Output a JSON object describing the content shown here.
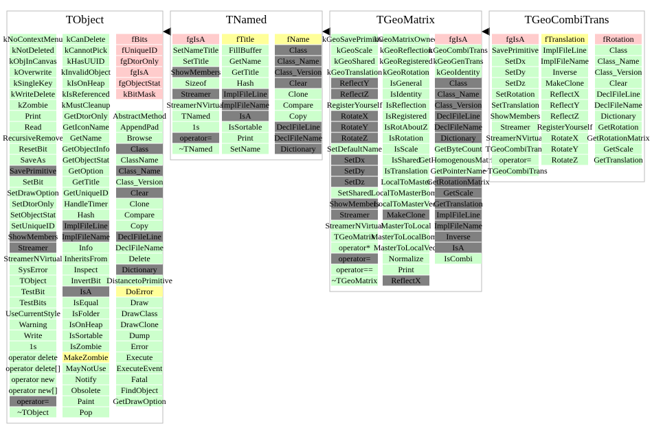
{
  "classes": [
    {
      "name": "TObject",
      "columns": [
        [
          {
            "color": "#ccffcc",
            "items": [
              "kNoContextMenu",
              "kNotDeleted",
              "kObjInCanvas",
              "kOverwrite",
              "kSingleKey",
              "kWriteDelete",
              "kZombie",
              "Print",
              "Read",
              "RecursiveRemove",
              "ResetBit",
              "SaveAs"
            ]
          },
          {
            "color": "#808080",
            "items": [
              "SavePrimitive"
            ]
          },
          {
            "color": "#ccffcc",
            "items": [
              "SetBit",
              "SetDrawOption",
              "SetDtorOnly",
              "SetObjectStat",
              "SetUniqueID"
            ]
          },
          {
            "color": "#808080",
            "items": [
              "ShowMembers",
              "Streamer"
            ]
          },
          {
            "color": "#ccffcc",
            "items": [
              "StreamerNVirtual",
              "SysError",
              "TObject",
              "TestBit",
              "TestBits",
              "UseCurrentStyle",
              "Warning",
              "Write",
              "1s",
              "operator delete",
              "operator delete[]",
              "operator new",
              "operator new[]"
            ]
          },
          {
            "color": "#808080",
            "items": [
              "operator="
            ]
          },
          {
            "color": "#ccffcc",
            "items": [
              "~TObject"
            ]
          }
        ],
        [
          {
            "color": "#ccffcc",
            "items": [
              "kCanDelete",
              "kCannotPick",
              "kHasUUID",
              "kInvalidObject",
              "kIsOnHeap",
              "kIsReferenced",
              "kMustCleanup",
              "GetDtorOnly",
              "GetIconName",
              "GetName",
              "GetObjectInfo",
              "GetObjectStat",
              "GetOption",
              "GetTitle",
              "GetUniqueID",
              "HandleTimer",
              "Hash"
            ]
          },
          {
            "color": "#808080",
            "items": [
              "ImplFileLine",
              "ImplFileName"
            ]
          },
          {
            "color": "#ccffcc",
            "items": [
              "Info",
              "InheritsFrom",
              "Inspect",
              "InvertBit"
            ]
          },
          {
            "color": "#808080",
            "items": [
              "IsA"
            ]
          },
          {
            "color": "#ccffcc",
            "items": [
              "IsEqual",
              "IsFolder",
              "IsOnHeap",
              "IsSortable",
              "IsZombie"
            ]
          },
          {
            "color": "#ffff99",
            "items": [
              "MakeZombie"
            ]
          },
          {
            "color": "#ccffcc",
            "items": [
              "MayNotUse",
              "Notify",
              "Obsolete",
              "Paint",
              "Pop"
            ]
          }
        ],
        [
          {
            "color": "#ffcccc",
            "items": [
              "fBits",
              "fUniqueID",
              "fgDtorOnly",
              "fgIsA",
              "fgObjectStat",
              "kBitMask",
              null
            ]
          },
          {
            "color": "#ccffcc",
            "items": [
              "AbstractMethod",
              "AppendPad",
              "Browse"
            ]
          },
          {
            "color": "#808080",
            "items": [
              "Class"
            ]
          },
          {
            "color": "#ccffcc",
            "items": [
              "ClassName"
            ]
          },
          {
            "color": "#808080",
            "items": [
              "Class_Name"
            ]
          },
          {
            "color": "#ccffcc",
            "items": [
              "Class_Version"
            ]
          },
          {
            "color": "#808080",
            "items": [
              "Clear"
            ]
          },
          {
            "color": "#ccffcc",
            "items": [
              "Clone",
              "Compare",
              "Copy"
            ]
          },
          {
            "color": "#808080",
            "items": [
              "DeclFileLine"
            ]
          },
          {
            "color": "#ccffcc",
            "items": [
              "DeclFileName",
              "Delete"
            ]
          },
          {
            "color": "#808080",
            "items": [
              "Dictionary"
            ]
          },
          {
            "color": "#ccffcc",
            "items": [
              "DistancetoPrimitive"
            ]
          },
          {
            "color": "#ffff99",
            "items": [
              "DoError"
            ]
          },
          {
            "color": "#ccffcc",
            "items": [
              "Draw",
              "DrawClass",
              "DrawClone",
              "Dump",
              "Error",
              "Execute",
              "ExecuteEvent",
              "Fatal",
              "FindObject",
              "GetDrawOption"
            ]
          }
        ]
      ]
    },
    {
      "name": "TNamed",
      "columns": [
        [
          {
            "color": "#ffcccc",
            "items": [
              "fgIsA"
            ]
          },
          {
            "color": "#ccffcc",
            "items": [
              "SetNameTitle",
              "SetTitle"
            ]
          },
          {
            "color": "#808080",
            "items": [
              "ShowMembers"
            ]
          },
          {
            "color": "#ccffcc",
            "items": [
              "Sizeof"
            ]
          },
          {
            "color": "#808080",
            "items": [
              "Streamer"
            ]
          },
          {
            "color": "#ccffcc",
            "items": [
              "StreamerNVirtual",
              "TNamed",
              "1s"
            ]
          },
          {
            "color": "#808080",
            "items": [
              "operator="
            ]
          },
          {
            "color": "#ccffcc",
            "items": [
              "~TNamed"
            ]
          }
        ],
        [
          {
            "color": "#ffff99",
            "items": [
              "fTitle"
            ]
          },
          {
            "color": "#ccffcc",
            "items": [
              "FillBuffer",
              "GetName",
              "GetTitle",
              "Hash"
            ]
          },
          {
            "color": "#808080",
            "items": [
              "ImplFileLine",
              "ImplFileName",
              "IsA"
            ]
          },
          {
            "color": "#ccffcc",
            "items": [
              "IsSortable",
              "Print",
              "SetName"
            ]
          }
        ],
        [
          {
            "color": "#ffff99",
            "items": [
              "fName"
            ]
          },
          {
            "color": "#808080",
            "items": [
              "Class",
              "Class_Name",
              "Class_Version",
              "Clear"
            ]
          },
          {
            "color": "#ccffcc",
            "items": [
              "Clone",
              "Compare",
              "Copy"
            ]
          },
          {
            "color": "#808080",
            "items": [
              "DeclFileLine",
              "DeclFileName",
              "Dictionary"
            ]
          }
        ]
      ]
    },
    {
      "name": "TGeoMatrix",
      "columns": [
        [
          {
            "color": "#ccffcc",
            "items": [
              "kGeoSavePrimitive",
              "kGeoScale",
              "kGeoShared",
              "kGeoTranslation"
            ]
          },
          {
            "color": "#808080",
            "items": [
              "ReflectY",
              "ReflectZ"
            ]
          },
          {
            "color": "#ccffcc",
            "items": [
              "RegisterYourself"
            ]
          },
          {
            "color": "#808080",
            "items": [
              "RotateX",
              "RotateY",
              "RotateZ"
            ]
          },
          {
            "color": "#ccffcc",
            "items": [
              "SetDefaultName"
            ]
          },
          {
            "color": "#808080",
            "items": [
              "SetDx",
              "SetDy",
              "SetDz"
            ]
          },
          {
            "color": "#ccffcc",
            "items": [
              "SetShared"
            ]
          },
          {
            "color": "#808080",
            "items": [
              "ShowMembers",
              "Streamer"
            ]
          },
          {
            "color": "#ccffcc",
            "items": [
              "StreamerNVirtual",
              "TGeoMatrix",
              "operator*"
            ]
          },
          {
            "color": "#808080",
            "items": [
              "operator="
            ]
          },
          {
            "color": "#ccffcc",
            "items": [
              "operator==",
              "~TGeoMatrix"
            ]
          }
        ],
        [
          {
            "color": "#ccffcc",
            "items": [
              "kGeoMatrixOwned",
              "kGeoReflection",
              "kGeoRegistered",
              "kGeoRotation",
              "IsGeneral",
              "IsIdentity",
              "IsReflection",
              "IsRegistered",
              "IsRotAboutZ",
              "IsRotation",
              "IsScale",
              "IsShared",
              "IsTranslation",
              "LocalToMaster",
              "LocalToMasterBomb",
              "LocalToMasterVect"
            ]
          },
          {
            "color": "#808080",
            "items": [
              "MakeClone"
            ]
          },
          {
            "color": "#ccffcc",
            "items": [
              "MasterToLocal",
              "MasterToLocalBomb",
              "MasterToLocalVect",
              "Normalize",
              "Print"
            ]
          },
          {
            "color": "#808080",
            "items": [
              "ReflectX"
            ]
          }
        ],
        [
          {
            "color": "#ffcccc",
            "items": [
              "fgIsA"
            ]
          },
          {
            "color": "#ccffcc",
            "items": [
              "kGeoCombiTrans",
              "kGeoGenTrans",
              "kGeoIdentity"
            ]
          },
          {
            "color": "#808080",
            "items": [
              "Class",
              "Class_Name",
              "Class_Version",
              "DeclFileLine",
              "DeclFileName",
              "Dictionary"
            ]
          },
          {
            "color": "#ccffcc",
            "items": [
              "GetByteCount",
              "GetHomogenousMatrix",
              "GetPointerName"
            ]
          },
          {
            "color": "#808080",
            "items": [
              "GetRotationMatrix",
              "GetScale",
              "GetTranslation",
              "ImplFileLine",
              "ImplFileName",
              "Inverse",
              "IsA"
            ]
          },
          {
            "color": "#ccffcc",
            "items": [
              "IsCombi"
            ]
          }
        ]
      ]
    },
    {
      "name": "TGeoCombiTrans",
      "columns": [
        [
          {
            "color": "#ffcccc",
            "items": [
              "fgIsA"
            ]
          },
          {
            "color": "#ccffcc",
            "items": [
              "SavePrimitive",
              "SetDx",
              "SetDy",
              "SetDz",
              "SetRotation",
              "SetTranslation",
              "ShowMembers",
              "Streamer",
              "StreamerNVirtual",
              "TGeoCombiTrans",
              "operator=",
              "~TGeoCombiTrans"
            ]
          }
        ],
        [
          {
            "color": "#ffff99",
            "items": [
              "fTranslation"
            ]
          },
          {
            "color": "#ccffcc",
            "items": [
              "ImplFileLine",
              "ImplFileName",
              "Inverse",
              "MakeClone",
              "ReflectX",
              "ReflectY",
              "ReflectZ",
              "RegisterYourself",
              "RotateX",
              "RotateY",
              "RotateZ"
            ]
          }
        ],
        [
          {
            "color": "#ffcccc",
            "items": [
              "fRotation"
            ]
          },
          {
            "color": "#ccffcc",
            "items": [
              "Class",
              "Class_Name",
              "Class_Version",
              "Clear",
              "DeclFileLine",
              "DeclFileName",
              "Dictionary",
              "GetRotation",
              "GetRotationMatrix",
              "GetScale",
              "GetTranslation"
            ]
          }
        ]
      ]
    }
  ]
}
